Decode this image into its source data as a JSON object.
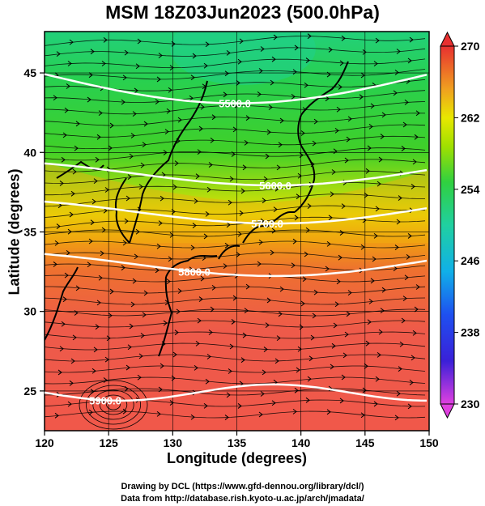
{
  "title": "MSM 18Z03Jun2023 (500.0hPa)",
  "x_axis": {
    "label": "Longitude (degrees)",
    "range": [
      120,
      150
    ],
    "ticks": [
      "120",
      "125",
      "130",
      "135",
      "140",
      "145",
      "150"
    ]
  },
  "y_axis": {
    "label": "Latitude  (degrees)",
    "range": [
      22.5,
      47.6
    ],
    "ticks": [
      "25",
      "30",
      "35",
      "40",
      "45"
    ]
  },
  "colorbar": {
    "range": [
      230,
      270
    ],
    "ticks": [
      "230",
      "238",
      "246",
      "254",
      "262",
      "270"
    ]
  },
  "contours": {
    "color": "#ffffff",
    "lines": [
      {
        "label": "5500.0",
        "lat": 43.6
      },
      {
        "label": "5600.0",
        "lat": 38.9
      },
      {
        "label": "5700.0",
        "lat": 36.5
      },
      {
        "label": "5800.0",
        "lat": 33.2
      },
      {
        "label": "5900.0",
        "lat": 24.9
      }
    ]
  },
  "credits": {
    "line1": "Drawing by DCL (https://www.gfd-dennou.org/library/dcl/)",
    "line2": "Data from http://database.rish.kyoto-u.ac.jp/arch/jmadata/"
  }
}
